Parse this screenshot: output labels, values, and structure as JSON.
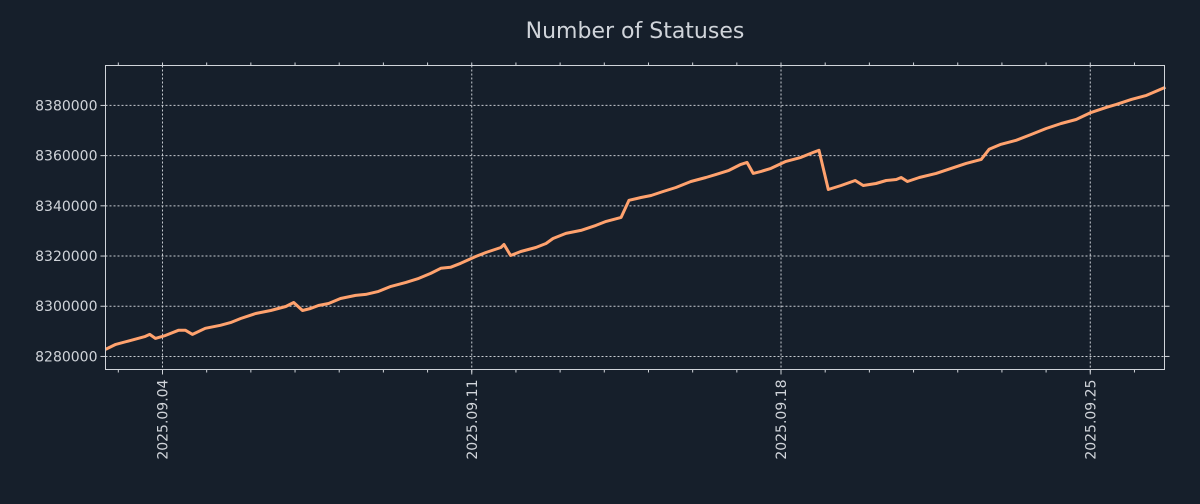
{
  "chart_data": {
    "type": "line",
    "title": "Number of Statuses",
    "xlabel": "",
    "ylabel": "",
    "x_unit": "day of September 2025",
    "xlim": [
      2.71,
      26.68
    ],
    "ylim": [
      8274800,
      8395900
    ],
    "grid": true,
    "x_ticks": [
      4,
      11,
      18,
      25
    ],
    "x_tick_labels": [
      "2025.09.04",
      "2025.09.11",
      "2025.09.18",
      "2025.09.25"
    ],
    "y_ticks": [
      8280000,
      8300000,
      8320000,
      8340000,
      8360000,
      8380000
    ],
    "y_tick_labels": [
      "8280000",
      "8300000",
      "8320000",
      "8340000",
      "8360000",
      "8380000"
    ],
    "colors": {
      "background": "#161f2b",
      "line": "#ffa26e",
      "axis": "#d0d4da",
      "grid": "#c8ccd2"
    },
    "series": [
      {
        "name": "Number of Statuses",
        "x": [
          2.71,
          2.94,
          3.28,
          3.61,
          3.71,
          3.84,
          4.07,
          4.36,
          4.52,
          4.68,
          4.97,
          5.31,
          5.54,
          5.77,
          6.11,
          6.45,
          6.79,
          6.97,
          7.17,
          7.35,
          7.53,
          7.76,
          8.03,
          8.37,
          8.6,
          8.89,
          9.17,
          9.51,
          9.8,
          10.07,
          10.3,
          10.52,
          10.75,
          11.09,
          11.32,
          11.66,
          11.73,
          11.88,
          12.11,
          12.45,
          12.68,
          12.84,
          13.13,
          13.47,
          13.81,
          14.04,
          14.38,
          14.56,
          14.83,
          15.06,
          15.33,
          15.62,
          15.96,
          16.3,
          16.53,
          16.82,
          17.09,
          17.23,
          17.37,
          17.55,
          17.77,
          18.11,
          18.45,
          18.73,
          18.86,
          19.07,
          19.36,
          19.68,
          19.86,
          20.15,
          20.38,
          20.61,
          20.72,
          20.86,
          21.13,
          21.51,
          21.85,
          22.19,
          22.53,
          22.71,
          22.98,
          23.32,
          23.66,
          24.0,
          24.34,
          24.68,
          25.02,
          25.36,
          25.59,
          25.93,
          26.27,
          26.7
        ],
        "values": [
          8282800,
          8284800,
          8286400,
          8288000,
          8288800,
          8287200,
          8288400,
          8290400,
          8290400,
          8288800,
          8291200,
          8292400,
          8293500,
          8295100,
          8297100,
          8298300,
          8299900,
          8301500,
          8298300,
          8299100,
          8300300,
          8301100,
          8303100,
          8304300,
          8304700,
          8305900,
          8307900,
          8309500,
          8311100,
          8313100,
          8315100,
          8315500,
          8317100,
          8319800,
          8321400,
          8323400,
          8324600,
          8320200,
          8321800,
          8323400,
          8325000,
          8327000,
          8329000,
          8330200,
          8332200,
          8333800,
          8335400,
          8342200,
          8343300,
          8344100,
          8345700,
          8347300,
          8349700,
          8351300,
          8352500,
          8354100,
          8356500,
          8357300,
          8352900,
          8353700,
          8354900,
          8357700,
          8359300,
          8361300,
          8362100,
          8346500,
          8348100,
          8350100,
          8348100,
          8348900,
          8350100,
          8350500,
          8351300,
          8349700,
          8351300,
          8352900,
          8354900,
          8356900,
          8358500,
          8362500,
          8364500,
          8366100,
          8368400,
          8370800,
          8372800,
          8374400,
          8377200,
          8379200,
          8380400,
          8382400,
          8384000,
          8387200
        ]
      }
    ]
  }
}
